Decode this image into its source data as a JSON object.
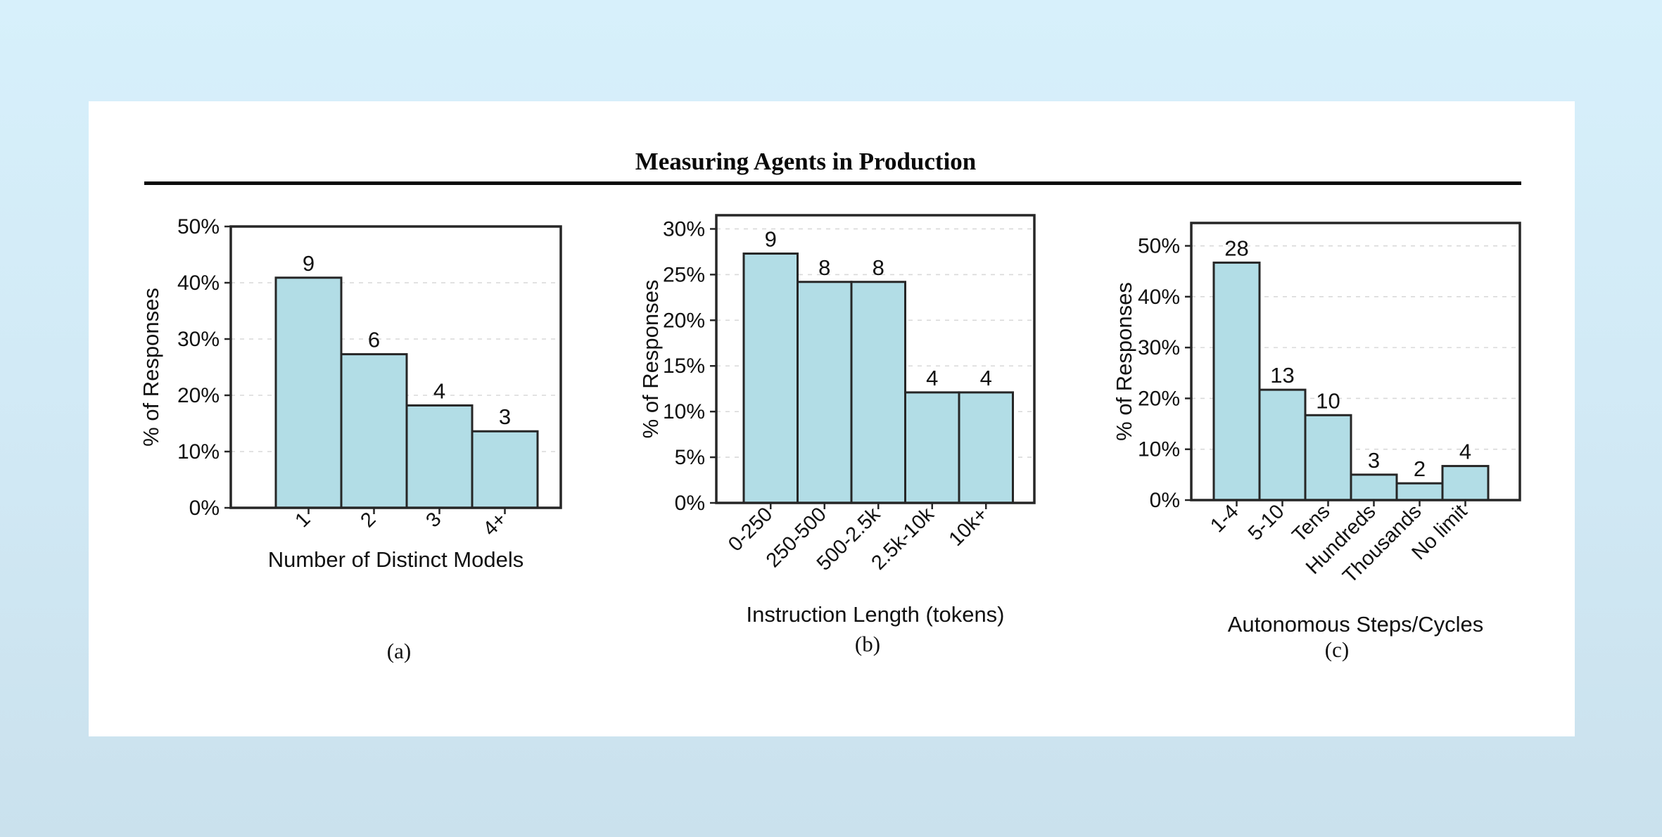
{
  "page": {
    "title": "Measuring Agents in Production"
  },
  "colors": {
    "bar_fill": "#b2dde6",
    "bar_edge": "#262626",
    "grid": "#d9d9d9",
    "axis": "#262626",
    "text": "#111111",
    "rule": "#0a0a0a",
    "card_bg": "#ffffff",
    "page_bg_top": "#d7f0fb",
    "page_bg_bottom": "#cae1ed"
  },
  "chart_data": [
    {
      "type": "bar",
      "label": "(a)",
      "xlabel": "Number of Distinct Models",
      "ylabel": "% of Responses",
      "categories": [
        "1",
        "2",
        "3",
        "4+"
      ],
      "values": [
        40.9,
        27.3,
        18.2,
        13.6
      ],
      "bar_labels": [
        "9",
        "6",
        "4",
        "3"
      ],
      "yticks": [
        0,
        10,
        20,
        30,
        40,
        50
      ],
      "ytick_labels": [
        "0%",
        "10%",
        "20%",
        "30%",
        "40%",
        "50%"
      ],
      "ylim": [
        0,
        50
      ],
      "grid": "horizontal-dashed",
      "legend": "none",
      "xtick_rotation": 45
    },
    {
      "type": "bar",
      "label": "(b)",
      "xlabel": "Instruction Length (tokens)",
      "ylabel": "% of Responses",
      "categories": [
        "0-250",
        "250-500",
        "500-2.5k",
        "2.5k-10k",
        "10k+"
      ],
      "values": [
        27.3,
        24.2,
        24.2,
        12.1,
        12.1
      ],
      "bar_labels": [
        "9",
        "8",
        "8",
        "4",
        "4"
      ],
      "yticks": [
        0,
        5,
        10,
        15,
        20,
        25,
        30
      ],
      "ytick_labels": [
        "0%",
        "5%",
        "10%",
        "15%",
        "20%",
        "25%",
        "30%"
      ],
      "ylim": [
        0,
        31.5
      ],
      "grid": "horizontal-dashed",
      "legend": "none",
      "xtick_rotation": 45
    },
    {
      "type": "bar",
      "label": "(c)",
      "xlabel": "Autonomous Steps/Cycles",
      "ylabel": "% of Responses",
      "categories": [
        "1-4",
        "5-10",
        "Tens",
        "Hundreds",
        "Thousands",
        "No limit"
      ],
      "values": [
        46.7,
        21.7,
        16.7,
        5.0,
        3.3,
        6.7
      ],
      "bar_labels": [
        "28",
        "13",
        "10",
        "3",
        "2",
        "4"
      ],
      "yticks": [
        0,
        10,
        20,
        30,
        40,
        50
      ],
      "ytick_labels": [
        "0%",
        "10%",
        "20%",
        "30%",
        "40%",
        "50%"
      ],
      "ylim": [
        0,
        54.5
      ],
      "grid": "horizontal-dashed",
      "legend": "none",
      "xtick_rotation": 45
    }
  ]
}
